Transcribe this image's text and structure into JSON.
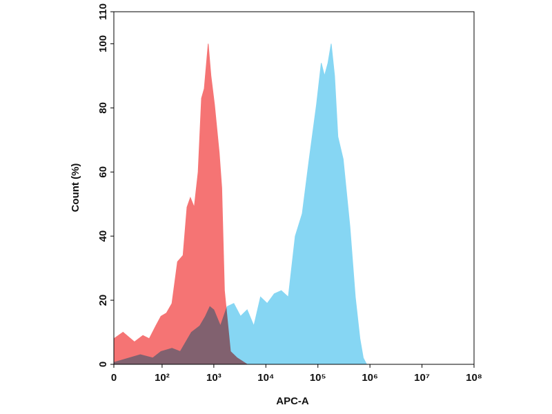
{
  "chart_data": {
    "type": "area",
    "xlabel": "APC-A",
    "ylabel": "Count (%)",
    "xscale": "asinh",
    "xlim": [
      0,
      100000000
    ],
    "xticks": [
      0,
      {
        "value": 100,
        "label": "10²"
      },
      {
        "value": 1000,
        "label": "10³"
      },
      {
        "value": 10000,
        "label": "10⁴"
      },
      {
        "value": 100000,
        "label": "10⁵"
      },
      {
        "value": 1000000,
        "label": "10⁶"
      },
      {
        "value": 10000000,
        "label": "10⁷"
      },
      {
        "value": 100000000,
        "label": "10⁸"
      }
    ],
    "ylim": [
      0,
      110
    ],
    "yticks": [
      0,
      20,
      40,
      60,
      80,
      100,
      110
    ],
    "series": [
      {
        "color": "#86d6f3",
        "x": [
          0,
          35,
          65,
          95,
          156,
          226,
          371,
          538,
          690,
          840,
          1000,
          1340,
          1800,
          2420,
          3260,
          4370,
          5880,
          7900,
          10600,
          14500,
          19800,
          27000,
          36700,
          50000,
          68000,
          94000,
          116000,
          134000,
          156000,
          180000,
          209000,
          242000,
          306000,
          412000,
          523000,
          642000,
          744000,
          863000
        ],
        "values": [
          0.6,
          3,
          2,
          4,
          5,
          4,
          10,
          12,
          15,
          18,
          17,
          12,
          18,
          19,
          15,
          17,
          12,
          21,
          19,
          22,
          23,
          21,
          40,
          47,
          64,
          81,
          94,
          90,
          94,
          100,
          90,
          71,
          64,
          43,
          21,
          8,
          2,
          0
        ]
      },
      {
        "color": "#f57474",
        "x": [
          0,
          10,
          25,
          40,
          55,
          75,
          95,
          122,
          156,
          200,
          256,
          305,
          354,
          420,
          500,
          580,
          655,
          780,
          880,
          1030,
          1270,
          1420,
          1600,
          2090,
          2810,
          4370
        ],
        "values": [
          8,
          10,
          7,
          9,
          8,
          12,
          15,
          16,
          19,
          32,
          34,
          49,
          52,
          49,
          60,
          83,
          86,
          100,
          90,
          81,
          66,
          55,
          23,
          4,
          2,
          0
        ]
      }
    ]
  }
}
